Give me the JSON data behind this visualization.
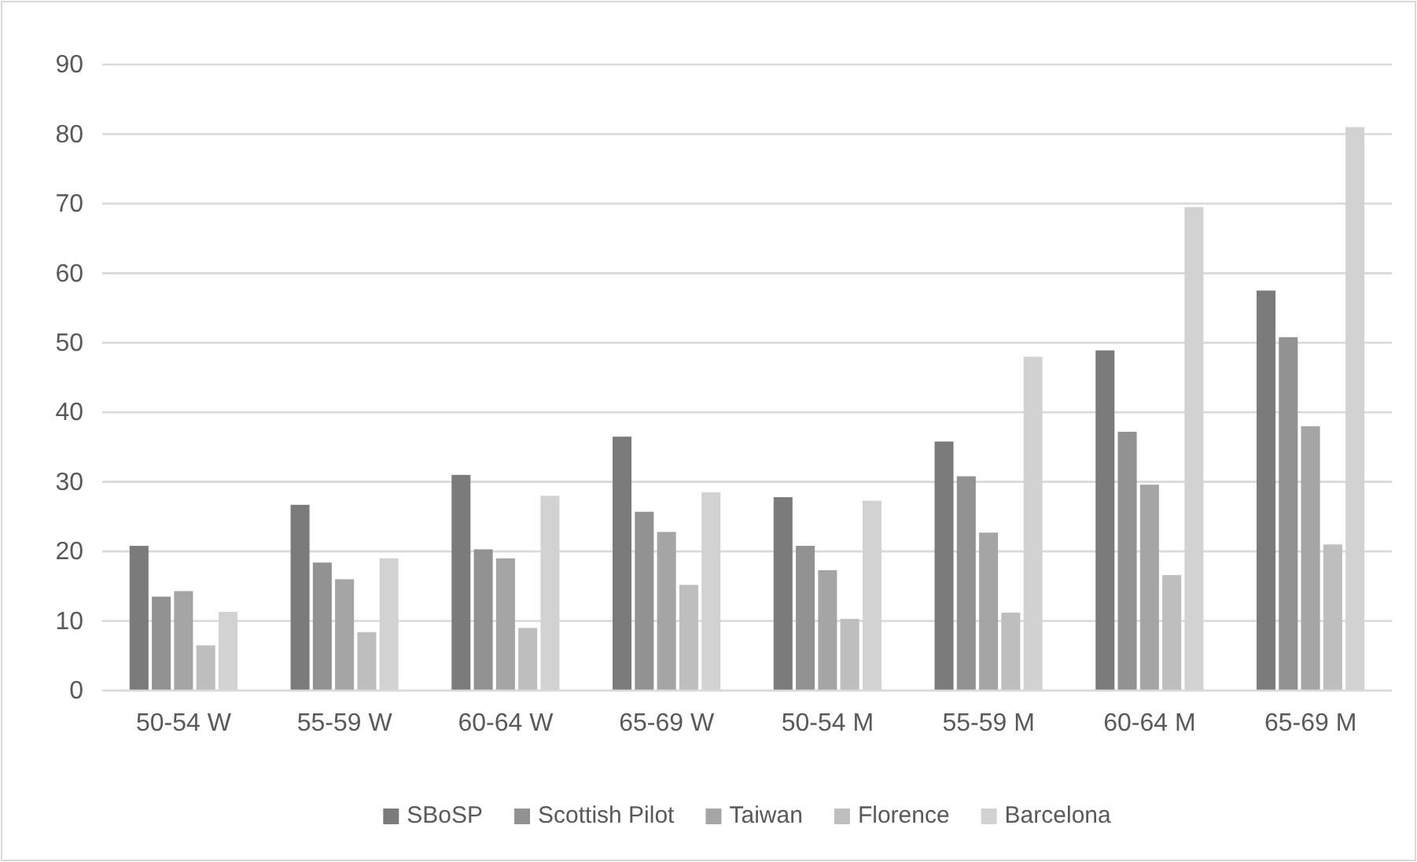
{
  "chart_data": {
    "type": "bar",
    "categories": [
      "50-54 W",
      "55-59 W",
      "60-64 W",
      "65-69 W",
      "50-54 M",
      "55-59 M",
      "60-64 M",
      "65-69 M"
    ],
    "series": [
      {
        "name": "SBoSP",
        "color": "#7b7b7b",
        "values": [
          20.8,
          26.7,
          31,
          36.5,
          27.8,
          35.8,
          48.9,
          57.5
        ]
      },
      {
        "name": "Scottish Pilot",
        "color": "#929292",
        "values": [
          13.5,
          18.4,
          20.3,
          25.7,
          20.8,
          30.8,
          37.2,
          50.8
        ]
      },
      {
        "name": "Taiwan",
        "color": "#a5a5a5",
        "values": [
          14.3,
          16,
          19,
          22.8,
          17.3,
          22.7,
          29.6,
          38
        ]
      },
      {
        "name": "Florence",
        "color": "#bebebe",
        "values": [
          6.5,
          8.4,
          9,
          15.2,
          10.3,
          11.2,
          16.6,
          21
        ]
      },
      {
        "name": "Barcelona",
        "color": "#d2d2d2",
        "values": [
          11.3,
          19,
          28,
          28.5,
          27.3,
          48,
          69.5,
          81
        ]
      }
    ],
    "ylim": [
      0,
      90
    ],
    "yticks": [
      0,
      10,
      20,
      30,
      40,
      50,
      60,
      70,
      80,
      90
    ],
    "grid": "y",
    "legend": "bottom"
  }
}
